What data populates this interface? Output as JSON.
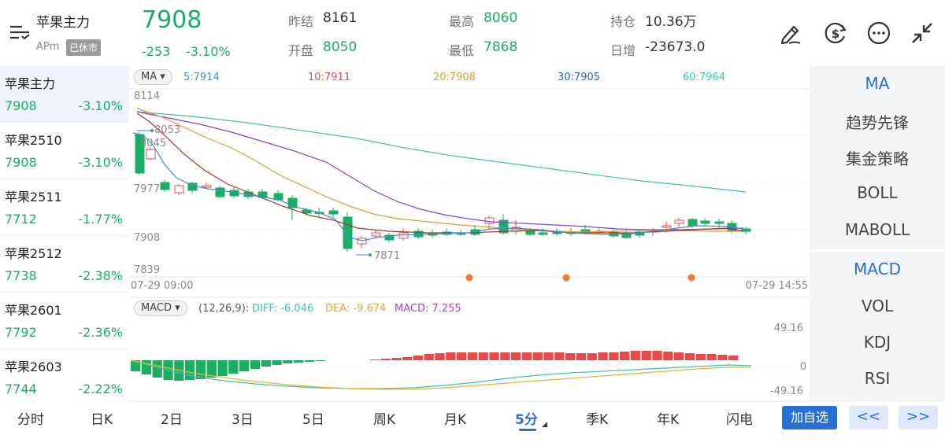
{
  "header": {
    "instrument": "苹果主力",
    "session": "APm",
    "status": "已休市",
    "last_price": "7908",
    "change": "-253",
    "change_pct": "-3.10%",
    "stats": [
      {
        "label": "昨结",
        "value": "8161"
      },
      {
        "label": "开盘",
        "value": "8050"
      },
      {
        "label": "最高",
        "value": "8060"
      },
      {
        "label": "最低",
        "value": "7868"
      },
      {
        "label": "持仓",
        "value": "10.36万"
      },
      {
        "label": "日增",
        "value": "-23673.0"
      }
    ],
    "icons": [
      "menu-icon",
      "draw-icon",
      "dollar-cycle-icon",
      "more-icon",
      "shrink-icon"
    ]
  },
  "sidebar": {
    "items": [
      {
        "name": "苹果主力",
        "price": "7908",
        "pct": "-3.10%"
      },
      {
        "name": "苹果2510",
        "price": "7908",
        "pct": "-3.10%"
      },
      {
        "name": "苹果2511",
        "price": "7712",
        "pct": "-1.77%"
      },
      {
        "name": "苹果2512",
        "price": "7738",
        "pct": "-2.38%"
      },
      {
        "name": "苹果2601",
        "price": "7792",
        "pct": "-2.36%"
      },
      {
        "name": "苹果2603",
        "price": "7744",
        "pct": "-2.22%"
      }
    ]
  },
  "indicators": {
    "main": [
      "MA",
      "趋势先锋",
      "集金策略",
      "BOLL",
      "MABOLL"
    ],
    "sub": [
      "MACD",
      "VOL",
      "KDJ",
      "RSI"
    ]
  },
  "chart": {
    "ma_dropdown": "MA",
    "ma_legend": [
      {
        "label": "5:7914",
        "color": "#3a8fd8"
      },
      {
        "label": "10:7911",
        "color": "#d9504a"
      },
      {
        "label": "20:7908",
        "color": "#e59a2f"
      },
      {
        "label": "30:7905",
        "color": "#2f5fb7"
      },
      {
        "label": "60:7964",
        "color": "#3cc4b0"
      }
    ],
    "price_ticks": [
      "8114",
      "7977",
      "7908",
      "7839"
    ],
    "high_label": "8053",
    "high_label2": "8045",
    "low_label": "7871",
    "time_start": "07-29 09:00",
    "time_end": "07-29 14:55",
    "macd_dropdown": "MACD",
    "macd_params": "(12,26,9):",
    "macd_diff": "DIFF: -6.046",
    "macd_dea": "DEA: -9.674",
    "macd_val": "MACD: 7.255",
    "macd_ticks": [
      "49.16",
      "0",
      "-49.16"
    ]
  },
  "bottom": {
    "timeframes": [
      "分时",
      "日K",
      "2日",
      "3日",
      "5日",
      "周K",
      "月K",
      "5分",
      "季K",
      "年K",
      "闪电"
    ],
    "active": "5分",
    "add_fav": "加自选",
    "prev": "<<",
    "next": ">>"
  }
}
